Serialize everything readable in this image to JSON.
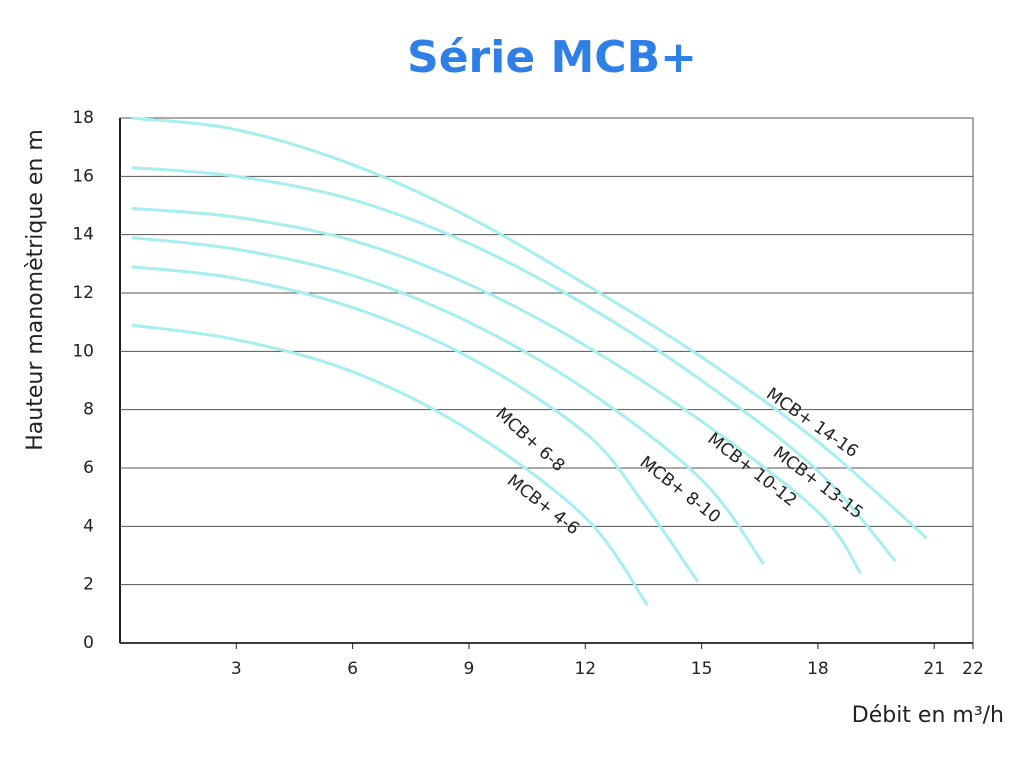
{
  "chart_data": {
    "type": "line",
    "title": "Série MCB+",
    "x_label": "Débit en m³/h",
    "y_label": "Hauteur manomètrique en m",
    "xlim": [
      0,
      22
    ],
    "xticks": [
      3,
      6,
      9,
      12,
      15,
      18,
      21,
      22
    ],
    "ylim": [
      0,
      18
    ],
    "yticks": [
      0,
      2,
      4,
      6,
      8,
      10,
      12,
      14,
      16,
      18
    ],
    "grid": true,
    "series": [
      {
        "name": "MCB+ 14-16",
        "color": "#a6eef0",
        "x": [
          0.3,
          3,
          6,
          9,
          12,
          15,
          18,
          20.8
        ],
        "values": [
          18,
          17.6,
          16.4,
          14.6,
          12.3,
          9.8,
          6.9,
          3.6
        ]
      },
      {
        "name": "MCB+ 13-15",
        "color": "#a6eef0",
        "x": [
          0.3,
          3,
          6,
          9,
          12,
          15,
          18,
          20
        ],
        "values": [
          16.3,
          16,
          15.2,
          13.7,
          11.6,
          9,
          5.9,
          2.8
        ]
      },
      {
        "name": "MCB+ 10-12",
        "color": "#a6eef0",
        "x": [
          0.3,
          3,
          6,
          9,
          12,
          15,
          18,
          19.1
        ],
        "values": [
          14.9,
          14.6,
          13.8,
          12.3,
          10.2,
          7.6,
          4.5,
          2.4
        ]
      },
      {
        "name": "MCB+ 8-10",
        "color": "#a6eef0",
        "x": [
          0.3,
          3,
          6,
          9,
          12,
          15,
          16.6
        ],
        "values": [
          13.9,
          13.5,
          12.6,
          11,
          8.7,
          5.6,
          2.7
        ]
      },
      {
        "name": "MCB+ 6-8",
        "color": "#a6eef0",
        "x": [
          0.3,
          3,
          6,
          9,
          12,
          13.5,
          14.9
        ],
        "values": [
          12.9,
          12.5,
          11.5,
          9.8,
          7.2,
          4.8,
          2.1
        ]
      },
      {
        "name": "MCB+ 4-6",
        "color": "#a6eef0",
        "x": [
          0.3,
          3,
          6,
          9,
          12,
          13.6
        ],
        "values": [
          10.9,
          10.4,
          9.3,
          7.3,
          4.3,
          1.3
        ]
      }
    ]
  }
}
